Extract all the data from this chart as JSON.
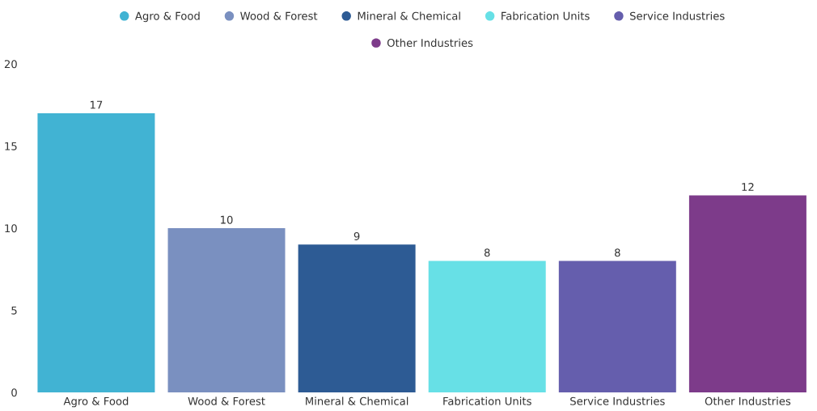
{
  "chart_data": {
    "type": "bar",
    "categories": [
      "Agro & Food",
      "Wood & Forest",
      "Mineral & Chemical",
      "Fabrication Units",
      "Service Industries",
      "Other Industries"
    ],
    "stacked": true,
    "series": [
      {
        "name": "Agro & Food",
        "color": "#41b3d3",
        "values": [
          17,
          null,
          null,
          null,
          null,
          null
        ]
      },
      {
        "name": "Wood & Forest",
        "color": "#7a90c0",
        "values": [
          null,
          10,
          null,
          null,
          null,
          null
        ]
      },
      {
        "name": "Mineral & Chemical",
        "color": "#2d5b94",
        "values": [
          null,
          null,
          9,
          null,
          null,
          null
        ]
      },
      {
        "name": "Fabrication Units",
        "color": "#67e0e6",
        "values": [
          null,
          null,
          null,
          8,
          null,
          null
        ]
      },
      {
        "name": "Service Industries",
        "color": "#655ead",
        "values": [
          null,
          null,
          null,
          null,
          8,
          null
        ]
      },
      {
        "name": "Other Industries",
        "color": "#7d3b8a",
        "values": [
          null,
          null,
          null,
          null,
          null,
          12
        ]
      }
    ],
    "ylim": [
      0,
      20
    ],
    "yticks": [
      0,
      5,
      10,
      15,
      20
    ],
    "data_labels": true,
    "legend": "top",
    "grid": false
  }
}
